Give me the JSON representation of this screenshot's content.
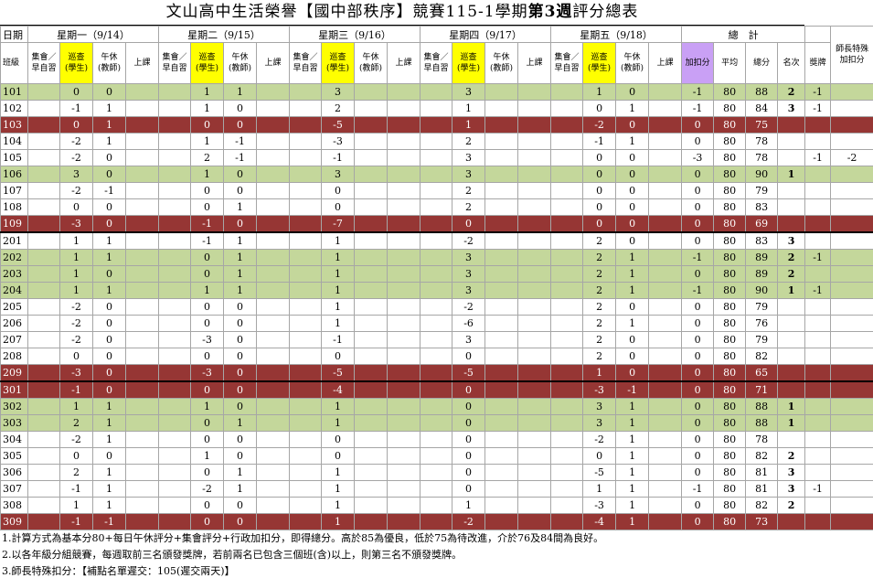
{
  "title": {
    "prefix": "文山高中生活榮譽【國中部秩序】競賽115-1學期",
    "bold": "第3週",
    "suffix": "評分總表"
  },
  "header": {
    "date_label": "日期",
    "days": [
      "星期一（9/14）",
      "星期二（9/15）",
      "星期三（9/16）",
      "星期四（9/17）",
      "星期五（9/18）"
    ],
    "total": "總　計",
    "teacher_adjust": "師長特殊\n加扣分",
    "class_label": "班級",
    "day_columns": [
      "集會／\n早自習",
      "巡查\n(學生)",
      "午休\n(教師)",
      "上課"
    ],
    "summary_columns": [
      "加扣分",
      "平均",
      "總分",
      "名次",
      "獎牌"
    ]
  },
  "rows": [
    {
      "class": "101",
      "fill": "green",
      "cells": [
        null,
        0,
        0,
        null,
        null,
        1,
        1,
        null,
        null,
        3,
        null,
        null,
        null,
        3,
        null,
        null,
        null,
        1,
        0,
        null,
        -1,
        80,
        88,
        2,
        -1,
        null
      ]
    },
    {
      "class": "102",
      "fill": null,
      "cells": [
        null,
        -1,
        1,
        null,
        null,
        1,
        0,
        null,
        null,
        2,
        null,
        null,
        null,
        1,
        null,
        null,
        null,
        0,
        1,
        null,
        -1,
        80,
        84,
        3,
        -1,
        null
      ]
    },
    {
      "class": "103",
      "fill": "red",
      "cells": [
        null,
        0,
        1,
        null,
        null,
        0,
        0,
        null,
        null,
        -5,
        null,
        null,
        null,
        1,
        null,
        null,
        null,
        -2,
        0,
        null,
        0,
        80,
        75,
        null,
        null,
        null
      ]
    },
    {
      "class": "104",
      "fill": null,
      "cells": [
        null,
        -2,
        1,
        null,
        null,
        1,
        -1,
        null,
        null,
        -3,
        null,
        null,
        null,
        2,
        null,
        null,
        null,
        -1,
        1,
        null,
        0,
        80,
        78,
        null,
        null,
        null
      ]
    },
    {
      "class": "105",
      "fill": null,
      "cells": [
        null,
        -2,
        0,
        null,
        null,
        2,
        -1,
        null,
        null,
        -1,
        null,
        null,
        null,
        3,
        null,
        null,
        null,
        0,
        0,
        null,
        -3,
        80,
        78,
        null,
        -1,
        -2
      ]
    },
    {
      "class": "106",
      "fill": "green",
      "cells": [
        null,
        3,
        0,
        null,
        null,
        1,
        0,
        null,
        null,
        3,
        null,
        null,
        null,
        3,
        null,
        null,
        null,
        0,
        0,
        null,
        0,
        80,
        90,
        1,
        null,
        null
      ]
    },
    {
      "class": "107",
      "fill": null,
      "cells": [
        null,
        -2,
        -1,
        null,
        null,
        0,
        0,
        null,
        null,
        0,
        null,
        null,
        null,
        2,
        null,
        null,
        null,
        0,
        0,
        null,
        0,
        80,
        79,
        null,
        null,
        null
      ]
    },
    {
      "class": "108",
      "fill": null,
      "cells": [
        null,
        0,
        0,
        null,
        null,
        0,
        1,
        null,
        null,
        0,
        null,
        null,
        null,
        2,
        null,
        null,
        null,
        0,
        0,
        null,
        0,
        80,
        83,
        null,
        null,
        null
      ]
    },
    {
      "class": "109",
      "fill": "red",
      "cells": [
        null,
        -3,
        0,
        null,
        null,
        -1,
        0,
        null,
        null,
        -7,
        null,
        null,
        null,
        0,
        null,
        null,
        null,
        0,
        0,
        null,
        0,
        80,
        69,
        null,
        null,
        null
      ]
    },
    {
      "class": "201",
      "fill": null,
      "cells": [
        null,
        1,
        1,
        null,
        null,
        -1,
        1,
        null,
        null,
        1,
        null,
        null,
        null,
        -2,
        null,
        null,
        null,
        2,
        0,
        null,
        0,
        80,
        83,
        3,
        null,
        null
      ]
    },
    {
      "class": "202",
      "fill": "green",
      "cells": [
        null,
        1,
        1,
        null,
        null,
        0,
        1,
        null,
        null,
        1,
        null,
        null,
        null,
        3,
        null,
        null,
        null,
        2,
        1,
        null,
        -1,
        80,
        89,
        2,
        -1,
        null
      ]
    },
    {
      "class": "203",
      "fill": "green",
      "cells": [
        null,
        1,
        0,
        null,
        null,
        0,
        1,
        null,
        null,
        1,
        null,
        null,
        null,
        3,
        null,
        null,
        null,
        2,
        1,
        null,
        0,
        80,
        89,
        2,
        null,
        null
      ]
    },
    {
      "class": "204",
      "fill": "green",
      "cells": [
        null,
        1,
        1,
        null,
        null,
        1,
        1,
        null,
        null,
        1,
        null,
        null,
        null,
        3,
        null,
        null,
        null,
        2,
        1,
        null,
        -1,
        80,
        90,
        1,
        -1,
        null
      ]
    },
    {
      "class": "205",
      "fill": null,
      "cells": [
        null,
        -2,
        0,
        null,
        null,
        0,
        0,
        null,
        null,
        1,
        null,
        null,
        null,
        -2,
        null,
        null,
        null,
        2,
        0,
        null,
        0,
        80,
        79,
        null,
        null,
        null
      ]
    },
    {
      "class": "206",
      "fill": null,
      "cells": [
        null,
        -2,
        0,
        null,
        null,
        0,
        0,
        null,
        null,
        1,
        null,
        null,
        null,
        -6,
        null,
        null,
        null,
        2,
        1,
        null,
        0,
        80,
        76,
        null,
        null,
        null
      ]
    },
    {
      "class": "207",
      "fill": null,
      "cells": [
        null,
        -2,
        0,
        null,
        null,
        -3,
        0,
        null,
        null,
        -1,
        null,
        null,
        null,
        3,
        null,
        null,
        null,
        2,
        0,
        null,
        0,
        80,
        79,
        null,
        null,
        null
      ]
    },
    {
      "class": "208",
      "fill": null,
      "cells": [
        null,
        0,
        0,
        null,
        null,
        0,
        0,
        null,
        null,
        0,
        null,
        null,
        null,
        0,
        null,
        null,
        null,
        2,
        0,
        null,
        0,
        80,
        82,
        null,
        null,
        null
      ]
    },
    {
      "class": "209",
      "fill": "red",
      "cells": [
        null,
        -3,
        0,
        null,
        null,
        -3,
        0,
        null,
        null,
        -5,
        null,
        null,
        null,
        -5,
        null,
        null,
        null,
        1,
        0,
        null,
        0,
        80,
        65,
        null,
        null,
        null
      ]
    },
    {
      "class": "301",
      "fill": "red",
      "cells": [
        null,
        -1,
        0,
        null,
        null,
        0,
        0,
        null,
        null,
        -4,
        null,
        null,
        null,
        0,
        null,
        null,
        null,
        -3,
        -1,
        null,
        0,
        80,
        71,
        null,
        null,
        null
      ]
    },
    {
      "class": "302",
      "fill": "green",
      "cells": [
        null,
        1,
        1,
        null,
        null,
        1,
        0,
        null,
        null,
        1,
        null,
        null,
        null,
        0,
        null,
        null,
        null,
        3,
        1,
        null,
        0,
        80,
        88,
        1,
        null,
        null
      ]
    },
    {
      "class": "303",
      "fill": "green",
      "cells": [
        null,
        2,
        1,
        null,
        null,
        0,
        1,
        null,
        null,
        1,
        null,
        null,
        null,
        0,
        null,
        null,
        null,
        3,
        1,
        null,
        0,
        80,
        88,
        1,
        null,
        null
      ]
    },
    {
      "class": "304",
      "fill": null,
      "cells": [
        null,
        -2,
        1,
        null,
        null,
        0,
        0,
        null,
        null,
        0,
        null,
        null,
        null,
        0,
        null,
        null,
        null,
        -2,
        1,
        null,
        0,
        80,
        78,
        null,
        null,
        null
      ]
    },
    {
      "class": "305",
      "fill": null,
      "cells": [
        null,
        0,
        0,
        null,
        null,
        1,
        0,
        null,
        null,
        0,
        null,
        null,
        null,
        0,
        null,
        null,
        null,
        0,
        1,
        null,
        0,
        80,
        82,
        2,
        null,
        null
      ]
    },
    {
      "class": "306",
      "fill": null,
      "cells": [
        null,
        2,
        1,
        null,
        null,
        0,
        1,
        null,
        null,
        1,
        null,
        null,
        null,
        0,
        null,
        null,
        null,
        -5,
        1,
        null,
        0,
        80,
        81,
        3,
        null,
        null
      ]
    },
    {
      "class": "307",
      "fill": null,
      "cells": [
        null,
        -1,
        1,
        null,
        null,
        -2,
        1,
        null,
        null,
        1,
        null,
        null,
        null,
        0,
        null,
        null,
        null,
        1,
        1,
        null,
        -1,
        80,
        81,
        3,
        -1,
        null
      ]
    },
    {
      "class": "308",
      "fill": null,
      "cells": [
        null,
        1,
        1,
        null,
        null,
        0,
        0,
        null,
        null,
        1,
        null,
        null,
        null,
        1,
        null,
        null,
        null,
        -3,
        1,
        null,
        0,
        80,
        82,
        2,
        null,
        null
      ]
    },
    {
      "class": "309",
      "fill": "red",
      "cells": [
        null,
        -1,
        -1,
        null,
        null,
        0,
        0,
        null,
        null,
        1,
        null,
        null,
        null,
        -2,
        null,
        null,
        null,
        -4,
        1,
        null,
        0,
        80,
        73,
        null,
        null,
        null
      ]
    }
  ],
  "notes": [
    "1.計算方式為基本分80+每日午休評分+集會評分+行政加扣分，即得總分。高於85為優良，低於75為待改進，介於76及84間為良好。",
    "2.以各年級分組競賽，每週取前三名頒發獎牌，若前兩名已包含三個班(含)以上，則第三名不頒發獎牌。",
    "3.師長特殊扣分：【補點名單遲交：105(遲交兩天)】"
  ]
}
